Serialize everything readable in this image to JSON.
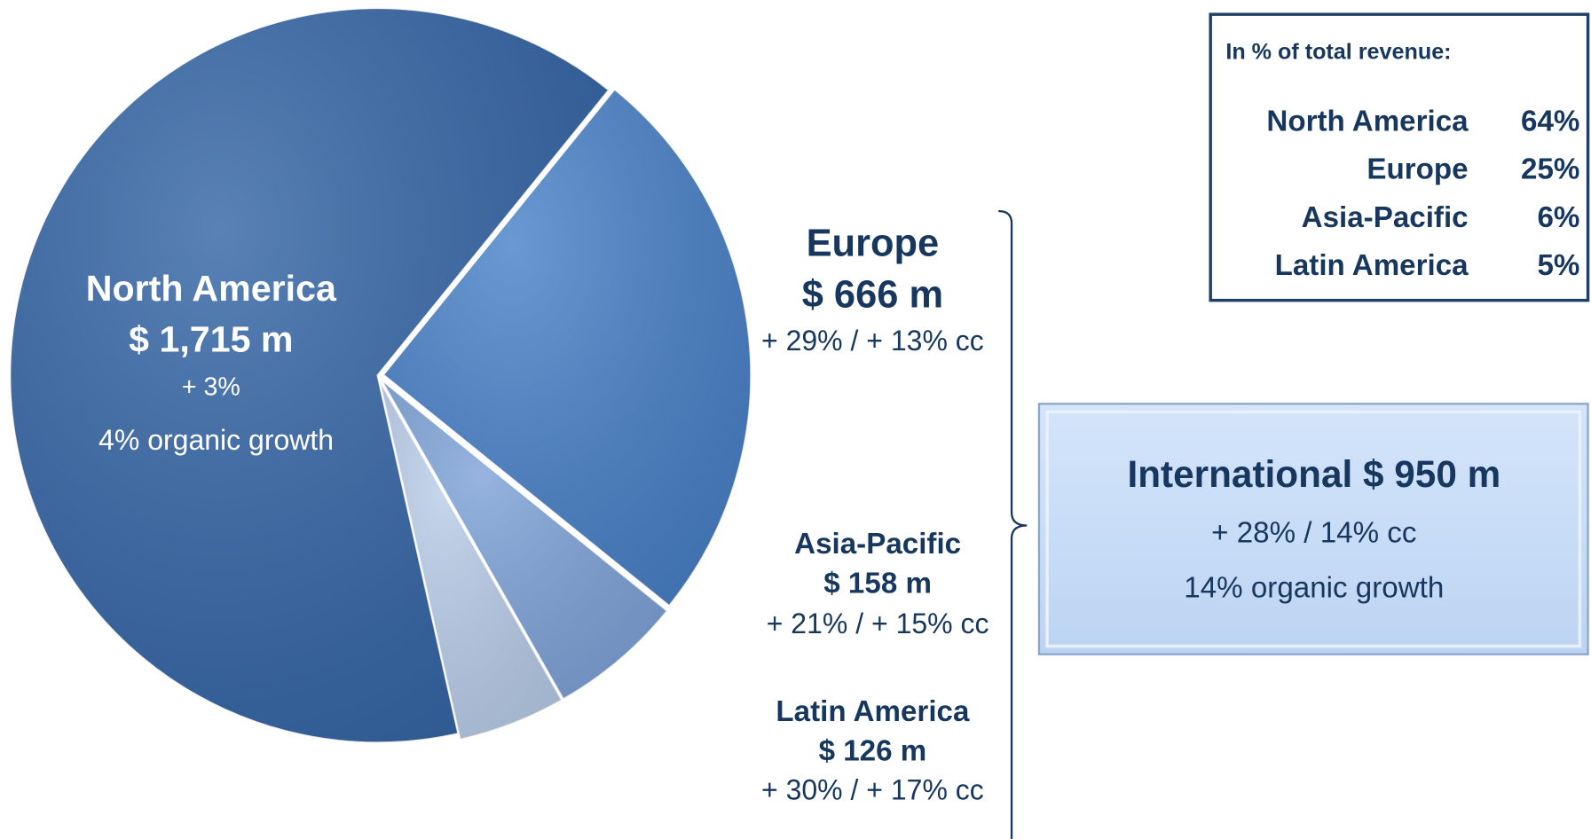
{
  "chart_data": {
    "type": "pie",
    "categories": [
      "North America",
      "Europe",
      "Asia-Pacific",
      "Latin America"
    ],
    "values": [
      1715,
      666,
      158,
      126
    ],
    "value_labels": [
      "$ 1,715 m",
      "$ 666 m",
      "$ 158 m",
      "$ 126 m"
    ],
    "growth": [
      "+ 3%",
      "+ 29% / + 13% cc",
      "+ 21% / + 15% cc",
      "+ 30% / + 17% cc"
    ],
    "na_organic": "4% organic growth",
    "colors": [
      "#3566a6",
      "#4a82c8",
      "#7fa3d8",
      "#b9cde9"
    ],
    "share_table": {
      "title": "In % of total revenue:",
      "rows": [
        [
          "North America",
          "64%"
        ],
        [
          "Europe",
          "25%"
        ],
        [
          "Asia-Pacific",
          "6%"
        ],
        [
          "Latin America",
          "5%"
        ]
      ]
    },
    "international": {
      "title": "International $ 950 m",
      "lines": [
        "+ 28% / 14% cc",
        "14% organic growth"
      ]
    }
  }
}
